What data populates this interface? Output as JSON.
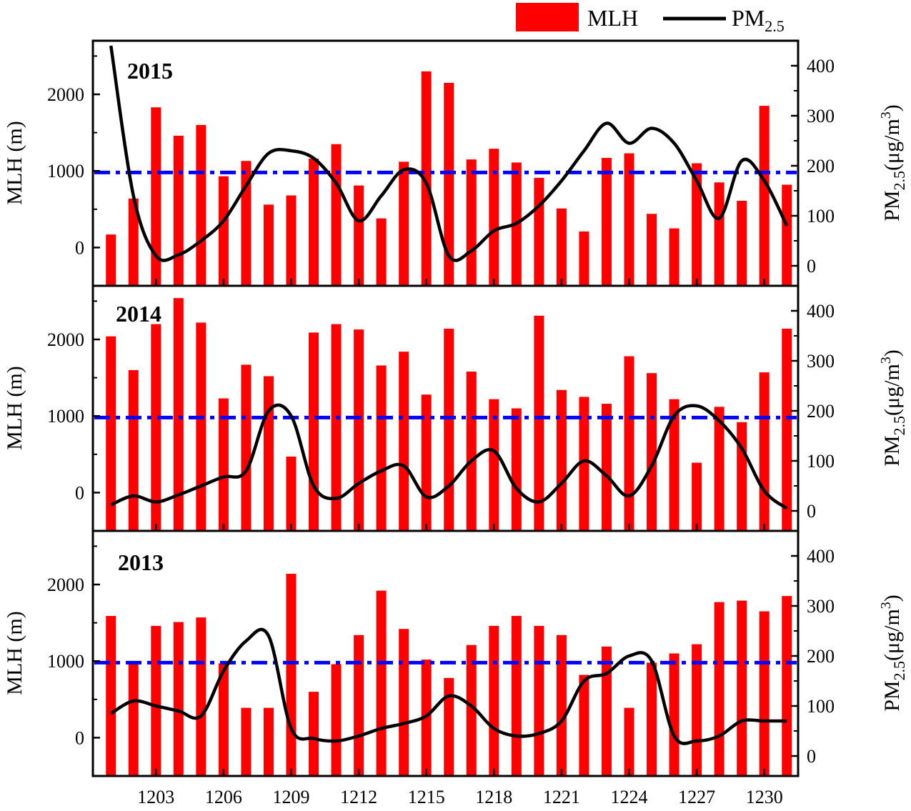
{
  "legend": {
    "mlh_label": "MLH",
    "pm_label": "PM",
    "pm_sub": "2.5"
  },
  "axes": {
    "left_title": "MLH (m)",
    "right_title_main": "PM",
    "right_title_sub": "2.5",
    "right_title_unit": "(μg/m",
    "right_title_sup": "3",
    "right_title_close": ")"
  },
  "colors": {
    "bar": "#ff0000",
    "line": "#000000",
    "threshold": "#0000ff"
  },
  "chart_data": {
    "type": "bar",
    "x_tick_labels": [
      "1203",
      "1206",
      "1209",
      "1212",
      "1215",
      "1218",
      "1221",
      "1224",
      "1227",
      "1230"
    ],
    "x_tick_days": [
      3,
      6,
      9,
      12,
      15,
      18,
      21,
      24,
      27,
      30
    ],
    "days": [
      1,
      2,
      3,
      4,
      5,
      6,
      7,
      8,
      9,
      10,
      11,
      12,
      13,
      14,
      15,
      16,
      17,
      18,
      19,
      20,
      21,
      22,
      23,
      24,
      25,
      26,
      27,
      28,
      29,
      30,
      31
    ],
    "mlh_axis": {
      "label": "MLH (m)",
      "range": [
        -500,
        2700
      ],
      "ticks": [
        0,
        1000,
        2000
      ]
    },
    "pm_axis": {
      "label": "PM2.5 (μg/m3)",
      "range": [
        -40,
        450
      ],
      "ticks": [
        0,
        100,
        200,
        300,
        400
      ]
    },
    "mlh_threshold": 980,
    "panels": [
      {
        "year": "2015",
        "mlh": [
          170,
          640,
          1830,
          1460,
          1600,
          930,
          1130,
          560,
          680,
          1160,
          1350,
          810,
          380,
          1120,
          2300,
          2150,
          1150,
          1290,
          1110,
          910,
          510,
          210,
          1170,
          1230,
          440,
          250,
          1100,
          850,
          610,
          1850,
          820
        ],
        "pm25": [
          440,
          140,
          20,
          22,
          50,
          90,
          160,
          225,
          230,
          215,
          165,
          90,
          140,
          192,
          165,
          20,
          30,
          70,
          85,
          120,
          170,
          230,
          285,
          245,
          275,
          245,
          170,
          95,
          210,
          170,
          80
        ]
      },
      {
        "year": "2014",
        "mlh": [
          2040,
          1600,
          2200,
          2540,
          2220,
          1230,
          1670,
          1520,
          470,
          2090,
          2200,
          2130,
          1660,
          1840,
          1280,
          2140,
          1580,
          1220,
          1100,
          2310,
          1340,
          1250,
          1160,
          1780,
          1560,
          1220,
          390,
          1120,
          920,
          1570,
          2140
        ],
        "pm25": [
          12,
          30,
          18,
          32,
          50,
          68,
          80,
          200,
          190,
          50,
          25,
          55,
          80,
          90,
          28,
          50,
          100,
          120,
          45,
          18,
          55,
          100,
          70,
          30,
          90,
          190,
          210,
          180,
          125,
          40,
          5
        ]
      },
      {
        "year": "2013",
        "mlh": [
          1590,
          970,
          1460,
          1510,
          1570,
          970,
          390,
          390,
          2140,
          600,
          960,
          1340,
          1920,
          1420,
          1020,
          780,
          1210,
          1460,
          1590,
          1460,
          1340,
          820,
          1190,
          390,
          980,
          1100,
          1220,
          1770,
          1790,
          1650,
          1850
        ],
        "pm25": [
          85,
          110,
          100,
          90,
          80,
          170,
          230,
          240,
          55,
          35,
          30,
          40,
          55,
          65,
          80,
          120,
          100,
          55,
          40,
          45,
          70,
          150,
          165,
          200,
          190,
          40,
          30,
          40,
          70,
          70,
          70
        ]
      }
    ]
  }
}
